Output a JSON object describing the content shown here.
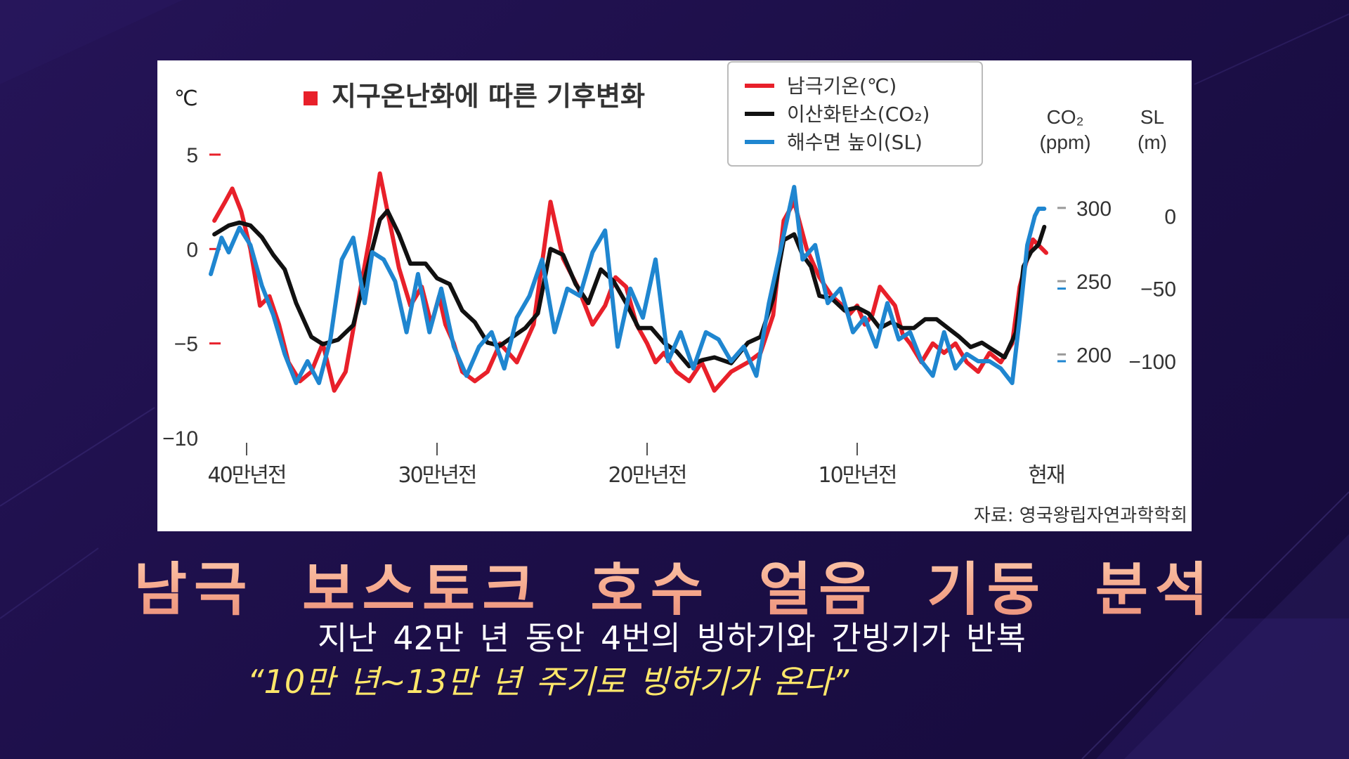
{
  "colors": {
    "temperature": "#e8202a",
    "co2": "#111111",
    "sea_level": "#1f86d0",
    "title_marker": "#e8202a",
    "caption_title": "#f5b693",
    "caption_sub": "#ffffff",
    "caption_quote": "#ffe76a"
  },
  "chart_data": {
    "type": "line",
    "title": "지구온난화에 따른 기후변화",
    "source": "자료: 영국왕립자연과학학회",
    "left_axis": {
      "unit": "℃",
      "ticks": [
        5,
        0,
        -5,
        -10
      ],
      "tick_labels": [
        "5",
        "0",
        "−5",
        "−10"
      ],
      "ylim": [
        -10,
        5
      ]
    },
    "right_axis_co2": {
      "unit_line1": "CO₂",
      "unit_line2": "(ppm)",
      "ticks": [
        300,
        250,
        200
      ],
      "tick_labels": [
        "300",
        "250",
        "200"
      ],
      "ylim": [
        180,
        310
      ]
    },
    "right_axis_sl": {
      "unit_line1": "SL",
      "unit_line2": "(m)",
      "ticks": [
        0,
        -50,
        -100
      ],
      "tick_labels": [
        "0",
        "−50",
        "−100"
      ],
      "ylim": [
        -130,
        20
      ]
    },
    "x_ticks": [
      {
        "t": 400,
        "label": "40만년전"
      },
      {
        "t": 300,
        "label": "30만년전"
      },
      {
        "t": 200,
        "label": "20만년전"
      },
      {
        "t": 100,
        "label": "10만년전"
      },
      {
        "t": 0,
        "label": "현재"
      }
    ],
    "x_unit_note": "thousand years before present",
    "xlim": [
      420,
      0
    ],
    "legend": [
      {
        "key": "temperature",
        "label": "남극기온(℃)"
      },
      {
        "key": "co2",
        "label": "이산화탄소(CO₂)"
      },
      {
        "key": "sea_level",
        "label": "해수면 높이(SL)"
      }
    ],
    "legend_position": "top-right",
    "series": [
      {
        "key": "temperature",
        "name": "남극기온(℃)",
        "axis": "left",
        "x": [
          418,
          412,
          408,
          403,
          398,
          393,
          388,
          383,
          378,
          372,
          366,
          360,
          354,
          348,
          340,
          335,
          330,
          326,
          320,
          314,
          308,
          303,
          299,
          296,
          292,
          288,
          282,
          276,
          270,
          262,
          254,
          246,
          240,
          233,
          226,
          220,
          215,
          210,
          205,
          200,
          196,
          192,
          186,
          180,
          174,
          168,
          160,
          152,
          146,
          140,
          135,
          130,
          124,
          118,
          112,
          107,
          104,
          100,
          96,
          92,
          88,
          84,
          80,
          76,
          72,
          66,
          60,
          54,
          48,
          42,
          36,
          30,
          24,
          18,
          14,
          10,
          7,
          4,
          2,
          0
        ],
        "y": [
          1.5,
          2.5,
          3.2,
          2.0,
          0.0,
          -3.0,
          -2.5,
          -4.0,
          -6.0,
          -7.0,
          -6.5,
          -5.0,
          -7.5,
          -6.5,
          -2.0,
          0.8,
          4.0,
          2.0,
          -1.0,
          -3.0,
          -2.0,
          -4.0,
          -2.5,
          -4.0,
          -5.0,
          -6.5,
          -7.0,
          -6.5,
          -5.0,
          -6.0,
          -4.0,
          2.5,
          -0.5,
          -2.0,
          -4.0,
          -3.0,
          -1.5,
          -2.0,
          -4.0,
          -5.0,
          -6.0,
          -5.5,
          -6.5,
          -7.0,
          -6.0,
          -7.5,
          -6.5,
          -6.0,
          -5.5,
          -3.5,
          1.5,
          2.5,
          0.0,
          -1.5,
          -2.5,
          -3.0,
          -3.5,
          -3.0,
          -4.0,
          -3.5,
          -2.0,
          -2.5,
          -3.0,
          -4.5,
          -5.0,
          -6.0,
          -5.0,
          -5.5,
          -5.0,
          -6.0,
          -6.5,
          -5.5,
          -6.0,
          -5.0,
          -2.0,
          -0.5,
          0.5,
          0.2,
          0.0,
          -0.2
        ]
      },
      {
        "key": "co2",
        "name": "이산화탄소(CO₂)",
        "axis": "right_co2",
        "x": [
          418,
          410,
          404,
          398,
          392,
          386,
          380,
          374,
          366,
          360,
          352,
          344,
          336,
          330,
          326,
          320,
          314,
          306,
          300,
          294,
          288,
          282,
          276,
          270,
          264,
          258,
          252,
          246,
          240,
          234,
          228,
          222,
          216,
          210,
          204,
          198,
          192,
          186,
          180,
          174,
          168,
          160,
          152,
          146,
          140,
          135,
          130,
          126,
          122,
          118,
          112,
          106,
          100,
          94,
          88,
          82,
          76,
          70,
          64,
          58,
          52,
          46,
          40,
          34,
          28,
          22,
          16,
          12,
          8,
          4,
          1
        ],
        "y": [
          282,
          288,
          290,
          288,
          280,
          268,
          258,
          235,
          212,
          207,
          210,
          220,
          262,
          292,
          298,
          282,
          262,
          262,
          252,
          248,
          230,
          222,
          208,
          206,
          212,
          218,
          228,
          272,
          268,
          248,
          235,
          258,
          250,
          235,
          218,
          218,
          208,
          202,
          192,
          196,
          198,
          194,
          208,
          212,
          238,
          278,
          282,
          268,
          260,
          240,
          238,
          230,
          232,
          228,
          218,
          222,
          218,
          218,
          224,
          224,
          218,
          212,
          205,
          208,
          203,
          198,
          215,
          260,
          270,
          275,
          287
        ]
      },
      {
        "key": "sea_level",
        "name": "해수면 높이(SL)",
        "axis": "right_sl",
        "x": [
          420,
          414,
          410,
          404,
          398,
          392,
          386,
          380,
          374,
          368,
          362,
          356,
          350,
          344,
          338,
          334,
          328,
          322,
          316,
          310,
          304,
          298,
          292,
          286,
          280,
          274,
          268,
          262,
          256,
          250,
          244,
          238,
          232,
          226,
          220,
          214,
          208,
          202,
          196,
          190,
          184,
          178,
          172,
          166,
          160,
          154,
          148,
          142,
          136,
          130,
          126,
          120,
          114,
          108,
          102,
          96,
          90,
          84,
          78,
          72,
          66,
          60,
          54,
          48,
          42,
          36,
          30,
          24,
          18,
          14,
          10,
          6,
          4,
          1
        ],
        "y": [
          -40,
          -15,
          -25,
          -8,
          -20,
          -48,
          -68,
          -95,
          -115,
          -100,
          -115,
          -85,
          -30,
          -15,
          -60,
          -25,
          -30,
          -45,
          -80,
          -40,
          -80,
          -50,
          -90,
          -110,
          -90,
          -80,
          -105,
          -70,
          -55,
          -30,
          -80,
          -50,
          -55,
          -25,
          -10,
          -90,
          -50,
          -70,
          -30,
          -100,
          -80,
          -105,
          -80,
          -85,
          -100,
          -90,
          -110,
          -60,
          -20,
          20,
          -30,
          -20,
          -60,
          -50,
          -80,
          -70,
          -90,
          -60,
          -85,
          -80,
          -100,
          -110,
          -80,
          -105,
          -95,
          -100,
          -100,
          -105,
          -115,
          -70,
          -20,
          0,
          5,
          5
        ]
      }
    ]
  },
  "caption": {
    "title": "남극 보스토크 호수 얼음 기둥 분석",
    "line1": "지난 42만 년 동안 4번의 빙하기와 간빙기가 반복",
    "line2": "“10만 년~13만 년 주기로 빙하기가 온다”"
  }
}
